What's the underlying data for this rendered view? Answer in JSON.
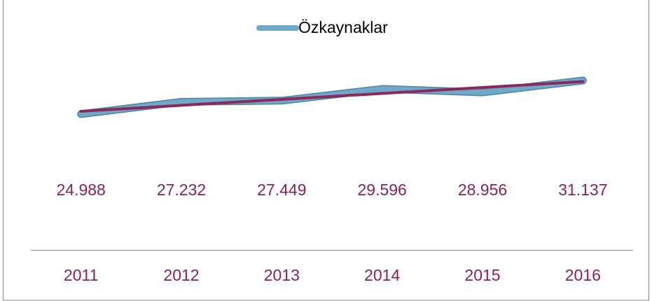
{
  "chart_data": {
    "type": "line",
    "categories": [
      "2011",
      "2012",
      "2013",
      "2014",
      "2015",
      "2016"
    ],
    "series": [
      {
        "name": "Özkaynaklar",
        "color": "#6fa8c8",
        "values": [
          24.988,
          27.232,
          27.449,
          29.596,
          28.956,
          31.137
        ]
      }
    ],
    "label_color": "#8b2252",
    "trendline": true,
    "trendline_color": "#8b2a5a",
    "legend": "top"
  }
}
